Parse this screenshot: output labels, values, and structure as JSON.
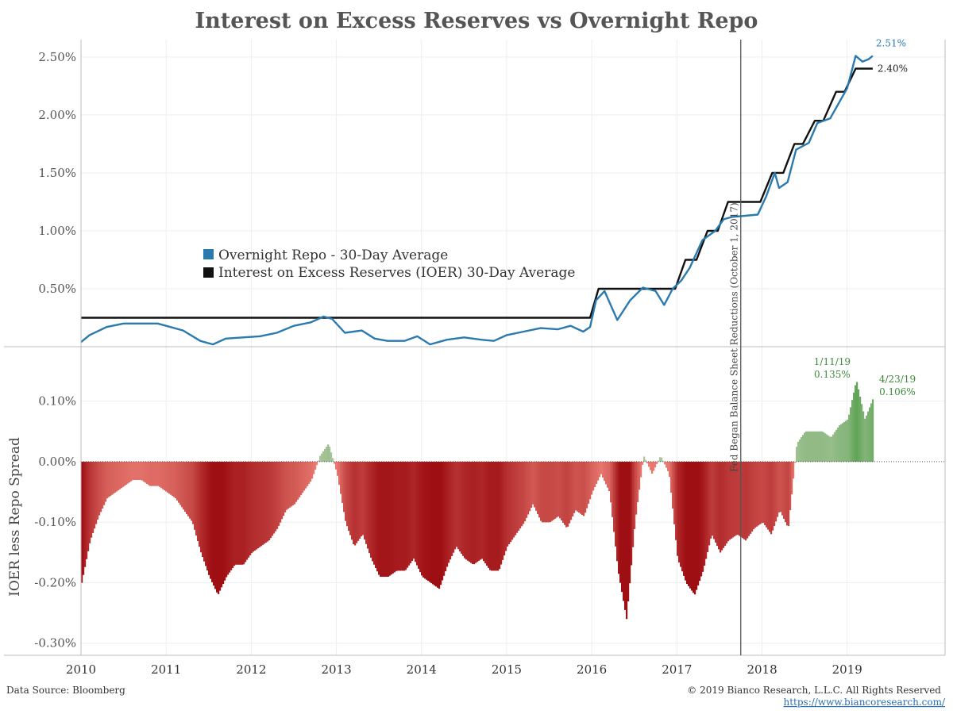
{
  "chart_data": [
    {
      "type": "line",
      "title": "Interest on Excess Reserves vs Overnight Repo",
      "ylim": [
        0,
        2.65
      ],
      "xlim": [
        2010.0,
        2020.15
      ],
      "yticks": [
        "0.50%",
        "1.00%",
        "1.50%",
        "2.00%",
        "2.50%"
      ],
      "ytick_values": [
        0.5,
        1.0,
        1.5,
        2.0,
        2.5
      ],
      "grid": true,
      "legend_position": "middle-left",
      "series": [
        {
          "name": "Overnight Repo - 30-Day Average",
          "color": "#2a7ab0",
          "end_label": "2.51%",
          "points": [
            [
              2010.0,
              0.04
            ],
            [
              2010.1,
              0.1
            ],
            [
              2010.3,
              0.17
            ],
            [
              2010.5,
              0.2
            ],
            [
              2010.7,
              0.2
            ],
            [
              2010.9,
              0.2
            ],
            [
              2011.0,
              0.18
            ],
            [
              2011.2,
              0.14
            ],
            [
              2011.4,
              0.05
            ],
            [
              2011.55,
              0.02
            ],
            [
              2011.7,
              0.07
            ],
            [
              2011.9,
              0.08
            ],
            [
              2012.1,
              0.09
            ],
            [
              2012.3,
              0.12
            ],
            [
              2012.5,
              0.18
            ],
            [
              2012.7,
              0.21
            ],
            [
              2012.85,
              0.26
            ],
            [
              2012.95,
              0.24
            ],
            [
              2013.1,
              0.12
            ],
            [
              2013.3,
              0.14
            ],
            [
              2013.45,
              0.07
            ],
            [
              2013.6,
              0.05
            ],
            [
              2013.8,
              0.05
            ],
            [
              2013.95,
              0.09
            ],
            [
              2014.1,
              0.02
            ],
            [
              2014.3,
              0.06
            ],
            [
              2014.5,
              0.08
            ],
            [
              2014.7,
              0.06
            ],
            [
              2014.85,
              0.05
            ],
            [
              2015.0,
              0.1
            ],
            [
              2015.2,
              0.13
            ],
            [
              2015.4,
              0.16
            ],
            [
              2015.6,
              0.15
            ],
            [
              2015.75,
              0.18
            ],
            [
              2015.9,
              0.13
            ],
            [
              2015.98,
              0.17
            ],
            [
              2016.05,
              0.4
            ],
            [
              2016.15,
              0.48
            ],
            [
              2016.3,
              0.23
            ],
            [
              2016.45,
              0.4
            ],
            [
              2016.6,
              0.51
            ],
            [
              2016.75,
              0.48
            ],
            [
              2016.85,
              0.36
            ],
            [
              2016.95,
              0.5
            ],
            [
              2017.05,
              0.57
            ],
            [
              2017.15,
              0.68
            ],
            [
              2017.3,
              0.92
            ],
            [
              2017.45,
              1.0
            ],
            [
              2017.55,
              1.1
            ],
            [
              2017.65,
              1.12
            ],
            [
              2017.8,
              1.13
            ],
            [
              2017.95,
              1.14
            ],
            [
              2018.05,
              1.3
            ],
            [
              2018.15,
              1.5
            ],
            [
              2018.2,
              1.37
            ],
            [
              2018.3,
              1.42
            ],
            [
              2018.4,
              1.7
            ],
            [
              2018.55,
              1.76
            ],
            [
              2018.65,
              1.93
            ],
            [
              2018.8,
              1.97
            ],
            [
              2018.9,
              2.1
            ],
            [
              2019.0,
              2.23
            ],
            [
              2019.05,
              2.37
            ],
            [
              2019.1,
              2.51
            ],
            [
              2019.18,
              2.46
            ],
            [
              2019.25,
              2.48
            ],
            [
              2019.3,
              2.51
            ]
          ]
        },
        {
          "name": "Interest on Excess Reserves (IOER) 30-Day Average",
          "color": "#111111",
          "end_label": "2.40%",
          "points": [
            [
              2010.0,
              0.25
            ],
            [
              2015.98,
              0.25
            ],
            [
              2016.08,
              0.5
            ],
            [
              2016.98,
              0.5
            ],
            [
              2017.1,
              0.75
            ],
            [
              2017.23,
              0.75
            ],
            [
              2017.36,
              1.0
            ],
            [
              2017.48,
              1.0
            ],
            [
              2017.6,
              1.25
            ],
            [
              2017.98,
              1.25
            ],
            [
              2018.12,
              1.5
            ],
            [
              2018.25,
              1.5
            ],
            [
              2018.38,
              1.75
            ],
            [
              2018.48,
              1.75
            ],
            [
              2018.62,
              1.95
            ],
            [
              2018.72,
              1.95
            ],
            [
              2018.87,
              2.2
            ],
            [
              2018.97,
              2.2
            ],
            [
              2019.1,
              2.4
            ],
            [
              2019.3,
              2.4
            ]
          ]
        }
      ]
    },
    {
      "type": "area",
      "ylabel": "IOER less Repo Spread",
      "ylim": [
        -0.32,
        0.19
      ],
      "xlim": [
        2010.0,
        2020.15
      ],
      "yticks": [
        "-0.30%",
        "-0.20%",
        "-0.10%",
        "0.00%",
        "0.10%"
      ],
      "ytick_values": [
        -0.3,
        -0.2,
        -0.1,
        0.0,
        0.1
      ],
      "x": [
        2010.0,
        2010.1,
        2010.2,
        2010.3,
        2010.4,
        2010.5,
        2010.6,
        2010.7,
        2010.8,
        2010.9,
        2011.0,
        2011.1,
        2011.2,
        2011.3,
        2011.4,
        2011.5,
        2011.6,
        2011.7,
        2011.8,
        2011.9,
        2012.0,
        2012.1,
        2012.2,
        2012.3,
        2012.4,
        2012.5,
        2012.6,
        2012.7,
        2012.8,
        2012.9,
        2013.0,
        2013.1,
        2013.2,
        2013.3,
        2013.4,
        2013.5,
        2013.6,
        2013.7,
        2013.8,
        2013.9,
        2014.0,
        2014.1,
        2014.2,
        2014.3,
        2014.4,
        2014.5,
        2014.6,
        2014.7,
        2014.8,
        2014.9,
        2015.0,
        2015.1,
        2015.2,
        2015.3,
        2015.4,
        2015.5,
        2015.6,
        2015.7,
        2015.8,
        2015.9,
        2016.0,
        2016.1,
        2016.2,
        2016.3,
        2016.4,
        2016.5,
        2016.6,
        2016.7,
        2016.8,
        2016.9,
        2017.0,
        2017.1,
        2017.2,
        2017.3,
        2017.4,
        2017.5,
        2017.6,
        2017.7,
        2017.8,
        2017.9,
        2018.0,
        2018.1,
        2018.2,
        2018.3,
        2018.4,
        2018.5,
        2018.6,
        2018.7,
        2018.8,
        2018.9,
        2019.0,
        2019.1,
        2019.2,
        2019.3
      ],
      "values": [
        -0.2,
        -0.13,
        -0.09,
        -0.06,
        -0.05,
        -0.04,
        -0.03,
        -0.03,
        -0.04,
        -0.04,
        -0.05,
        -0.06,
        -0.08,
        -0.1,
        -0.15,
        -0.19,
        -0.22,
        -0.19,
        -0.17,
        -0.17,
        -0.15,
        -0.14,
        -0.13,
        -0.11,
        -0.08,
        -0.07,
        -0.05,
        -0.03,
        0.01,
        0.03,
        -0.02,
        -0.1,
        -0.14,
        -0.12,
        -0.16,
        -0.19,
        -0.19,
        -0.18,
        -0.18,
        -0.16,
        -0.19,
        -0.2,
        -0.21,
        -0.17,
        -0.14,
        -0.16,
        -0.17,
        -0.16,
        -0.18,
        -0.18,
        -0.14,
        -0.12,
        -0.1,
        -0.07,
        -0.1,
        -0.1,
        -0.09,
        -0.11,
        -0.08,
        -0.09,
        -0.05,
        -0.02,
        -0.05,
        -0.18,
        -0.26,
        -0.1,
        0.01,
        -0.02,
        0.01,
        -0.02,
        -0.16,
        -0.2,
        -0.22,
        -0.18,
        -0.12,
        -0.15,
        -0.13,
        -0.12,
        -0.13,
        -0.11,
        -0.1,
        -0.12,
        -0.08,
        -0.11,
        0.03,
        0.05,
        0.05,
        0.05,
        0.04,
        0.06,
        0.07,
        0.135,
        0.07,
        0.106
      ],
      "annotations": [
        {
          "date": "1/11/19",
          "value": "0.135%",
          "x": 2019.03,
          "y": 0.135
        },
        {
          "date": "4/23/19",
          "value": "0.106%",
          "x": 2019.31,
          "y": 0.106
        }
      ]
    }
  ],
  "x_tick_labels": [
    "2010",
    "2011",
    "2012",
    "2013",
    "2014",
    "2015",
    "2016",
    "2017",
    "2018",
    "2019"
  ],
  "x_tick_values": [
    2010,
    2011,
    2012,
    2013,
    2014,
    2015,
    2016,
    2017,
    2018,
    2019
  ],
  "event_line": {
    "x": 2017.75,
    "label": "Fed Began Balance Sheet Reductions (October 1, 2017)"
  },
  "footer": {
    "source": "Data Source: Bloomberg",
    "copyright": "© 2019 Bianco Research, L.L.C. All Rights Reserved",
    "url": "https://www.biancoresearch.com/"
  },
  "colors": {
    "repo": "#2a7ab0",
    "ioer": "#111111",
    "negative": "#cc1a1a",
    "positive": "#7fae6f",
    "annotation": "#3d8a3a"
  }
}
